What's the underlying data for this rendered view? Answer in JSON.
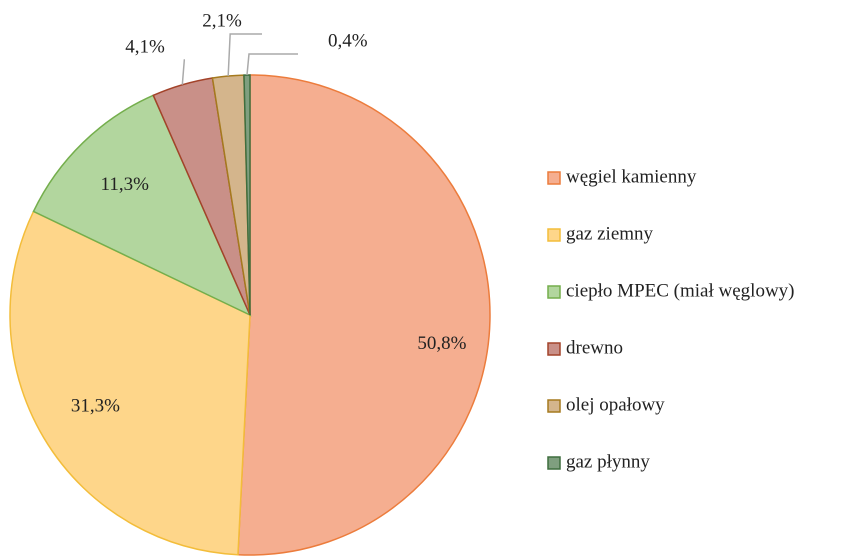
{
  "chart_data": {
    "type": "pie",
    "categories": [
      "węgiel kamienny",
      "gaz ziemny",
      "ciepło MPEC (miał węglowy)",
      "drewno",
      "olej opałowy",
      "gaz płynny"
    ],
    "values": [
      50.8,
      31.3,
      11.3,
      4.1,
      2.1,
      0.4
    ],
    "value_labels": [
      "50,8%",
      "31,3%",
      "11,3%",
      "4,1%",
      "2,1%",
      "0,4%"
    ],
    "colors": [
      "#f5ae90",
      "#fed68a",
      "#b2d69e",
      "#c99088",
      "#d4b58c",
      "#7f9f7f"
    ],
    "stroke_colors": [
      "#ec7c3c",
      "#f3bd3a",
      "#74ae4c",
      "#a3432a",
      "#a57a1e",
      "#3f6e3f"
    ],
    "legend": "right"
  }
}
